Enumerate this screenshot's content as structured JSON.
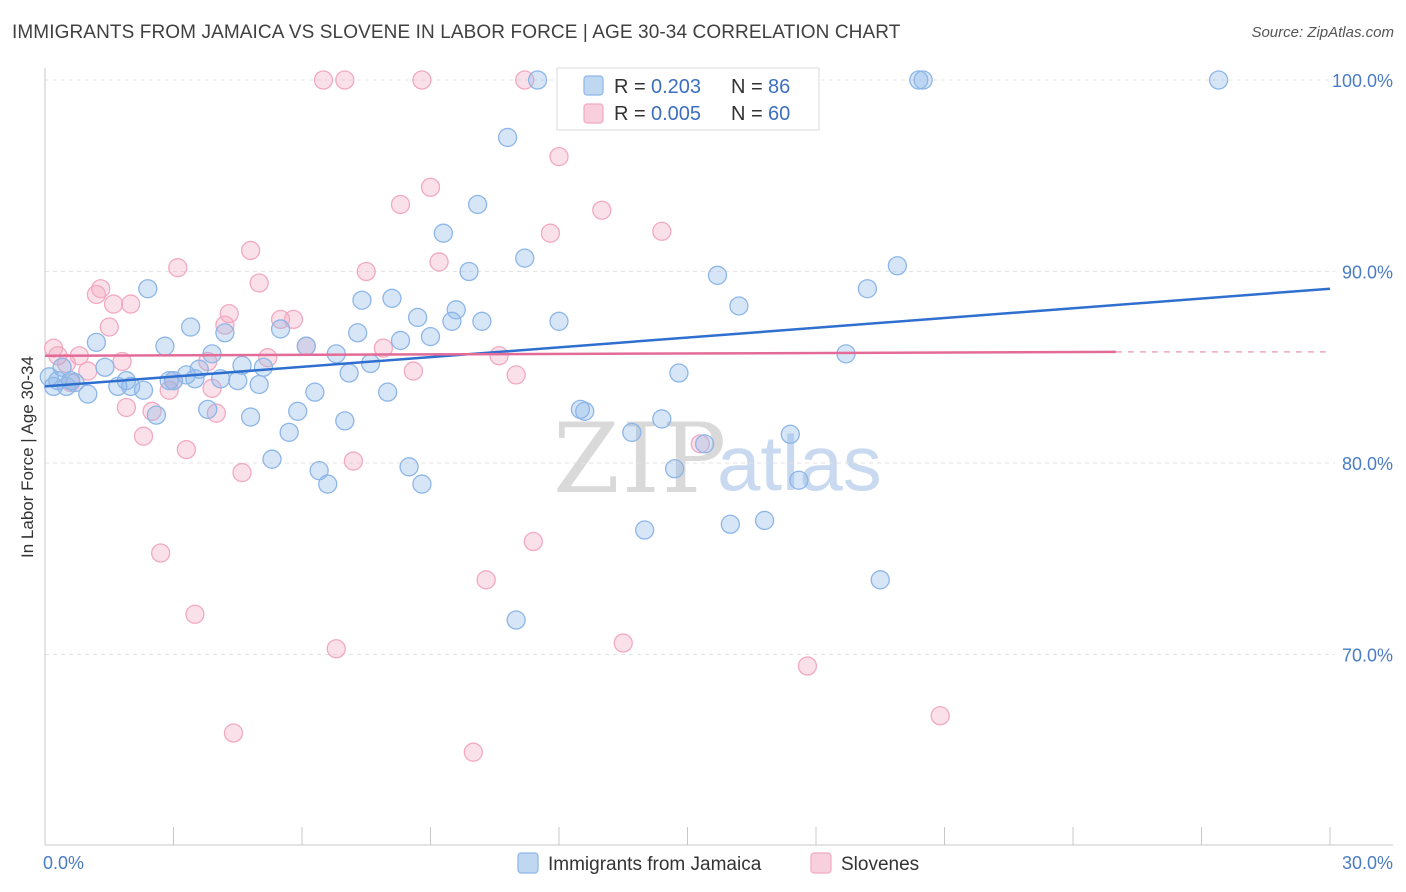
{
  "header": {
    "title": "IMMIGRANTS FROM JAMAICA VS SLOVENE IN LABOR FORCE | AGE 30-34 CORRELATION CHART",
    "source": "Source: ZipAtlas.com"
  },
  "watermark": {
    "part1": "ZIP",
    "part2": "atlas"
  },
  "legend": {
    "rows": [
      {
        "r_label": "R =",
        "r_value": "0.203",
        "n_label": "N =",
        "n_value": "86",
        "color": "#a9c8ee"
      },
      {
        "r_label": "R =",
        "r_value": "0.005",
        "n_label": "N =",
        "n_value": "60",
        "color": "#f5b6ca"
      }
    ]
  },
  "chart_data": {
    "type": "scatter",
    "title": "IMMIGRANTS FROM JAMAICA VS SLOVENE IN LABOR FORCE | AGE 30-34 CORRELATION CHART",
    "xlabel": "",
    "ylabel": "In Labor Force | Age 30-34",
    "xlim": [
      0,
      30
    ],
    "ylim": [
      60,
      102
    ],
    "x_tick_labels": [
      "0.0%",
      "30.0%"
    ],
    "y_ticks": [
      70,
      80,
      90,
      100
    ],
    "y_tick_labels": [
      "70.0%",
      "80.0%",
      "90.0%",
      "100.0%"
    ],
    "grid": true,
    "legend_position": "top-center",
    "series": [
      {
        "name": "Immigrants from Jamaica",
        "color": "#8db6e8",
        "line_color": "#2f6fcf",
        "trend": {
          "x": [
            0,
            30
          ],
          "y": [
            84.0,
            89.1
          ]
        },
        "points": [
          [
            0.2,
            84.0
          ],
          [
            0.3,
            84.3
          ],
          [
            0.4,
            85.0
          ],
          [
            0.5,
            84.0
          ],
          [
            0.6,
            84.3
          ],
          [
            0.7,
            84.2
          ],
          [
            1.0,
            83.6
          ],
          [
            1.2,
            86.3
          ],
          [
            1.4,
            85.0
          ],
          [
            1.7,
            84.0
          ],
          [
            1.9,
            84.3
          ],
          [
            2.0,
            84.0
          ],
          [
            2.3,
            83.8
          ],
          [
            2.4,
            89.1
          ],
          [
            2.6,
            82.5
          ],
          [
            2.8,
            86.1
          ],
          [
            2.9,
            84.3
          ],
          [
            3.0,
            84.3
          ],
          [
            3.3,
            84.6
          ],
          [
            3.4,
            87.1
          ],
          [
            3.5,
            84.4
          ],
          [
            3.6,
            84.9
          ],
          [
            3.8,
            82.8
          ],
          [
            3.9,
            85.7
          ],
          [
            4.1,
            84.4
          ],
          [
            4.2,
            86.8
          ],
          [
            4.5,
            84.3
          ],
          [
            4.6,
            85.1
          ],
          [
            4.8,
            82.4
          ],
          [
            5.0,
            84.1
          ],
          [
            5.1,
            85.0
          ],
          [
            5.3,
            80.2
          ],
          [
            5.5,
            87.0
          ],
          [
            5.7,
            81.6
          ],
          [
            5.9,
            82.7
          ],
          [
            6.1,
            86.1
          ],
          [
            6.3,
            83.7
          ],
          [
            6.4,
            79.6
          ],
          [
            6.6,
            78.9
          ],
          [
            6.8,
            85.7
          ],
          [
            7.0,
            82.2
          ],
          [
            7.1,
            84.7
          ],
          [
            7.3,
            86.8
          ],
          [
            7.4,
            88.5
          ],
          [
            7.6,
            85.2
          ],
          [
            8.0,
            83.7
          ],
          [
            8.1,
            88.6
          ],
          [
            8.3,
            86.4
          ],
          [
            8.5,
            79.8
          ],
          [
            8.7,
            87.6
          ],
          [
            8.8,
            78.9
          ],
          [
            9.0,
            86.6
          ],
          [
            9.3,
            92.0
          ],
          [
            9.5,
            87.4
          ],
          [
            9.6,
            88.0
          ],
          [
            9.9,
            90.0
          ],
          [
            10.1,
            93.5
          ],
          [
            10.2,
            87.4
          ],
          [
            10.8,
            97.0
          ],
          [
            11.0,
            71.8
          ],
          [
            11.2,
            90.7
          ],
          [
            11.5,
            100.0
          ],
          [
            12.0,
            87.4
          ],
          [
            12.5,
            82.8
          ],
          [
            12.6,
            82.7
          ],
          [
            13.5,
            100.0
          ],
          [
            13.7,
            81.6
          ],
          [
            14.0,
            76.5
          ],
          [
            14.4,
            82.3
          ],
          [
            14.7,
            79.7
          ],
          [
            14.8,
            84.7
          ],
          [
            15.4,
            81.0
          ],
          [
            15.7,
            89.8
          ],
          [
            16.0,
            76.8
          ],
          [
            16.2,
            88.2
          ],
          [
            16.8,
            77.0
          ],
          [
            17.4,
            81.5
          ],
          [
            17.6,
            79.1
          ],
          [
            18.7,
            85.7
          ],
          [
            19.2,
            89.1
          ],
          [
            19.5,
            73.9
          ],
          [
            19.9,
            90.3
          ],
          [
            20.4,
            100.0
          ],
          [
            20.5,
            100.0
          ],
          [
            27.4,
            100.0
          ],
          [
            0.1,
            84.5
          ]
        ]
      },
      {
        "name": "Slovenes",
        "color": "#f2a9c1",
        "line_color": "#e36b97",
        "trend": {
          "x": [
            0,
            25
          ],
          "y": [
            85.6,
            85.8
          ]
        },
        "points": [
          [
            0.2,
            86.0
          ],
          [
            0.3,
            85.6
          ],
          [
            0.5,
            85.2
          ],
          [
            0.6,
            84.2
          ],
          [
            0.8,
            85.6
          ],
          [
            1.0,
            84.8
          ],
          [
            1.2,
            88.8
          ],
          [
            1.3,
            89.1
          ],
          [
            1.5,
            87.1
          ],
          [
            1.6,
            88.3
          ],
          [
            1.8,
            85.3
          ],
          [
            1.9,
            82.9
          ],
          [
            2.0,
            88.3
          ],
          [
            2.3,
            81.4
          ],
          [
            2.5,
            82.7
          ],
          [
            2.7,
            75.3
          ],
          [
            2.9,
            83.8
          ],
          [
            3.0,
            84.3
          ],
          [
            3.1,
            90.2
          ],
          [
            3.3,
            80.7
          ],
          [
            3.5,
            72.1
          ],
          [
            3.8,
            85.3
          ],
          [
            3.9,
            83.9
          ],
          [
            4.0,
            82.6
          ],
          [
            4.2,
            87.2
          ],
          [
            4.3,
            87.8
          ],
          [
            4.4,
            65.9
          ],
          [
            4.6,
            79.5
          ],
          [
            4.8,
            91.1
          ],
          [
            5.0,
            89.4
          ],
          [
            5.2,
            85.5
          ],
          [
            5.5,
            87.5
          ],
          [
            5.8,
            87.5
          ],
          [
            6.1,
            86.1
          ],
          [
            6.5,
            100.0
          ],
          [
            6.8,
            70.3
          ],
          [
            7.0,
            100.0
          ],
          [
            7.2,
            80.1
          ],
          [
            7.5,
            90.0
          ],
          [
            7.9,
            86.0
          ],
          [
            8.3,
            93.5
          ],
          [
            8.6,
            84.8
          ],
          [
            8.8,
            100.0
          ],
          [
            9.0,
            94.4
          ],
          [
            9.2,
            90.5
          ],
          [
            10.0,
            64.9
          ],
          [
            10.3,
            73.9
          ],
          [
            10.6,
            85.6
          ],
          [
            11.0,
            84.6
          ],
          [
            11.2,
            100.0
          ],
          [
            11.4,
            75.9
          ],
          [
            11.8,
            92.0
          ],
          [
            12.0,
            96.0
          ],
          [
            13.0,
            93.2
          ],
          [
            13.5,
            70.6
          ],
          [
            14.0,
            100.0
          ],
          [
            14.4,
            92.1
          ],
          [
            15.3,
            81.0
          ],
          [
            17.8,
            69.4
          ],
          [
            20.9,
            66.8
          ]
        ]
      }
    ]
  }
}
